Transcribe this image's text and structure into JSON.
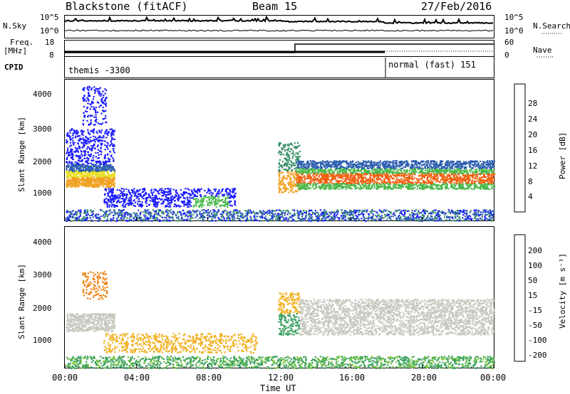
{
  "header": {
    "station": "Blackstone (fitACF)",
    "beam": "Beam 15",
    "date": "27/Feb/2016"
  },
  "params": {
    "nsky_label": "N.Sky",
    "nsearch_label": "N.Search",
    "log_top": "10^5",
    "log_bottom": "10^0",
    "freq_label": "Freq.",
    "freq_unit": "[MHz]",
    "freq_top": "18",
    "freq_bottom": "8",
    "nave_label": "Nave",
    "nave_top": "60",
    "nave_bottom": "0",
    "cpid_label": "CPID",
    "cpid_1": "themis -3300",
    "cpid_2": "normal (fast) 151"
  },
  "chart_data": [
    {
      "type": "heatmap",
      "ylabel": "Slant Range [km]",
      "ylim": [
        180,
        4500
      ],
      "yticks": [
        "1000",
        "2000",
        "3000",
        "4000"
      ],
      "colorbar_label": "Power [dB]",
      "colorbar_ticks": [
        "4",
        "8",
        "12",
        "16",
        "20",
        "24",
        "28"
      ],
      "colorbar_colors": [
        "#1a1aff",
        "#2f5fb0",
        "#3a8f6a",
        "#4ab84a",
        "#e8e020",
        "#f0a020",
        "#f06010",
        "#e01010"
      ],
      "colorbar_range": [
        0,
        30
      ]
    },
    {
      "type": "heatmap",
      "ylabel": "Slant Range [km]",
      "ylim": [
        180,
        4500
      ],
      "yticks": [
        "1000",
        "2000",
        "3000",
        "4000"
      ],
      "colorbar_label": "Velocity [m s⁻¹]",
      "colorbar_ticks": [
        "200",
        "100",
        "50",
        "15",
        "-15",
        "-50",
        "-100",
        "-200"
      ],
      "colorbar_colors": [
        "#1a2a9a",
        "#2a6ab8",
        "#3aa060",
        "#7ac840",
        "#c8c8c0",
        "#f0b020",
        "#f08010",
        "#f04010",
        "#e01010"
      ]
    }
  ],
  "xaxis": {
    "label": "Time UT",
    "ticks": [
      "00:00",
      "04:00",
      "08:00",
      "12:00",
      "16:00",
      "20:00",
      "00:00"
    ]
  }
}
